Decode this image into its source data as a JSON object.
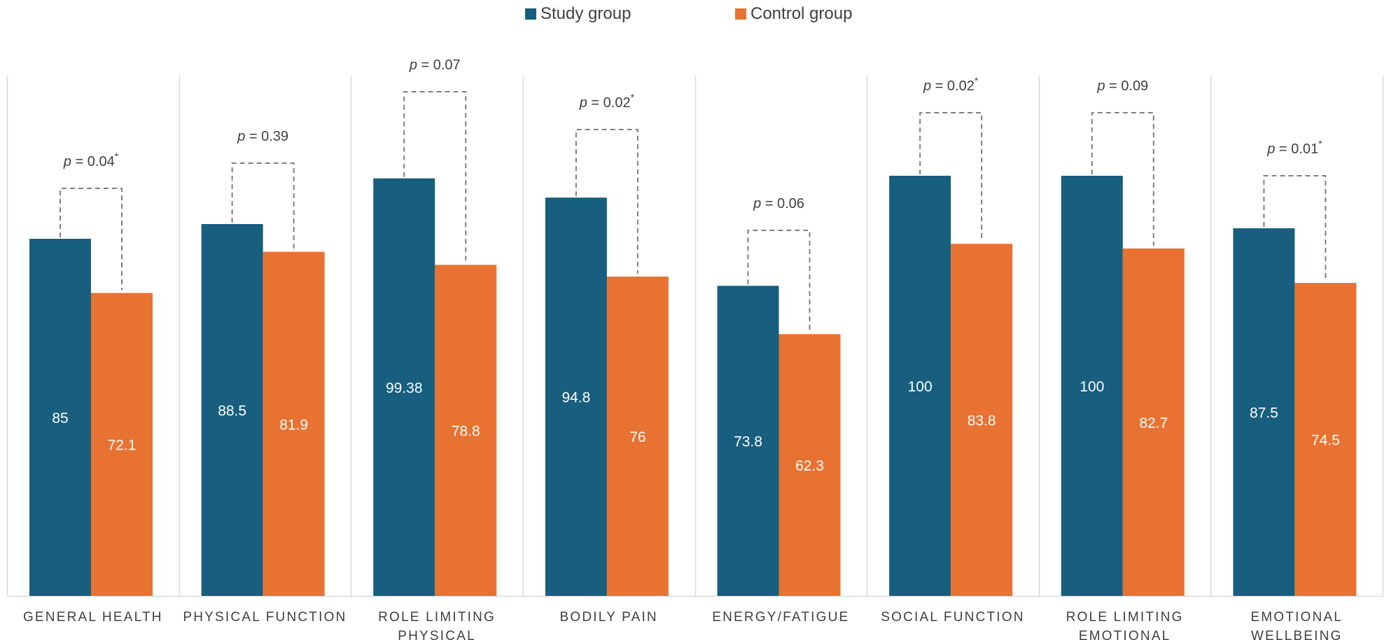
{
  "chart_data": {
    "type": "bar",
    "title": "",
    "xlabel": "",
    "ylabel": "",
    "ylim": [
      0,
      125
    ],
    "grid": false,
    "legend_position": "top-center",
    "colors": {
      "study": "#175e7f",
      "control": "#e87232",
      "separator": "#d9d9d9",
      "bracket": "#7f7f7f",
      "text": "#404040"
    },
    "categories": [
      [
        "GENERAL HEALTH"
      ],
      [
        "PHYSICAL FUNCTION"
      ],
      [
        "ROLE LIMITING",
        "PHYSICAL"
      ],
      [
        "BODILY PAIN"
      ],
      [
        "ENERGY/FATIGUE"
      ],
      [
        "SOCIAL FUNCTION"
      ],
      [
        "ROLE LIMITING",
        "EMOTIONAL"
      ],
      [
        "EMOTIONAL",
        "WELLBEING"
      ]
    ],
    "series": [
      {
        "name": "Study group",
        "values": [
          85,
          88.5,
          99.38,
          94.8,
          73.8,
          100,
          100,
          87.5
        ],
        "labels": [
          "85",
          "88.5",
          "99.38",
          "94.8",
          "73.8",
          "100",
          "100",
          "87.5"
        ]
      },
      {
        "name": "Control group",
        "values": [
          72.1,
          81.9,
          78.8,
          76,
          62.3,
          83.8,
          82.7,
          74.5
        ],
        "labels": [
          "72.1",
          "81.9",
          "78.8",
          "76",
          "62.3",
          "83.8",
          "82.7",
          "74.5"
        ]
      }
    ],
    "annotations": [
      {
        "p": "p",
        "value": "= 0.04",
        "star": "*"
      },
      {
        "p": "p",
        "value": "= 0.39",
        "star": ""
      },
      {
        "p": "p",
        "value": "= 0.07",
        "star": ""
      },
      {
        "p": "p",
        "value": "= 0.02",
        "star": "*"
      },
      {
        "p": "p",
        "value": "= 0.06",
        "star": ""
      },
      {
        "p": "p",
        "value": "= 0.02",
        "star": "*"
      },
      {
        "p": "p",
        "value": "= 0.09",
        "star": ""
      },
      {
        "p": "p",
        "value": "= 0.01",
        "star": "*"
      }
    ],
    "bracket_heights": [
      97,
      103,
      120,
      111,
      87,
      115,
      115,
      100
    ]
  }
}
